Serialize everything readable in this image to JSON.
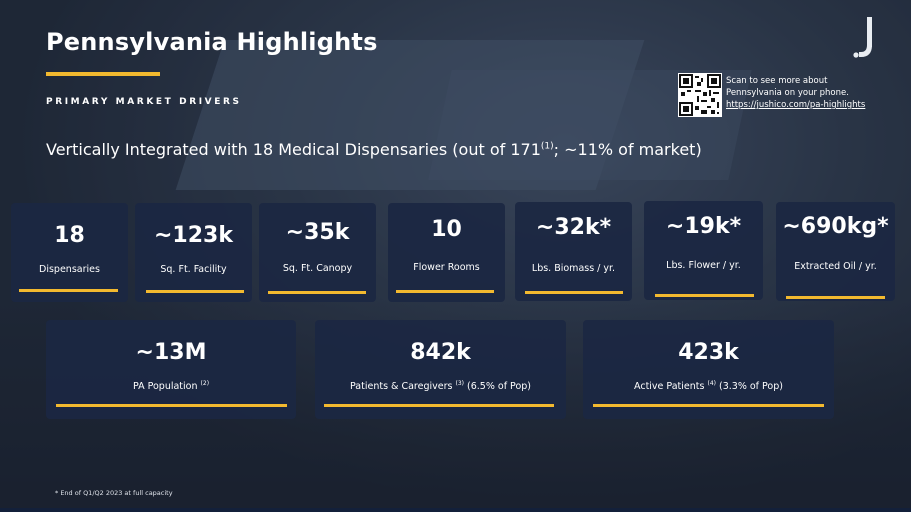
{
  "slide": {
    "title": "Pennsylvania Highlights",
    "subtitle": "PRIMARY MARKET DRIVERS",
    "headline": {
      "text": "Vertically Integrated with 18 Medical Dispensaries (out of 171",
      "sup": "(1)",
      "suffix": "; ~11% of market)"
    },
    "qr": {
      "line1": "Scan to see more about",
      "line2": "Pennsylvania on your phone.",
      "url": "https://jushico.com/pa-highlights"
    },
    "footnote": "* End of Q1/Q2 2023 at full capacity"
  },
  "top_stats": [
    {
      "value": "18",
      "label": "Dispensaries"
    },
    {
      "value": "~123k",
      "label": "Sq. Ft. Facility"
    },
    {
      "value": "~35k",
      "label": "Sq. Ft. Canopy"
    },
    {
      "value": "10",
      "label": "Flower Rooms"
    },
    {
      "value": "~32k*",
      "label": "Lbs. Biomass / yr."
    },
    {
      "value": "~19k*",
      "label": "Lbs. Flower / yr."
    },
    {
      "value": "~690kg*",
      "label": "Extracted Oil / yr."
    }
  ],
  "bottom_stats": [
    {
      "value": "~13M",
      "label": "PA Population",
      "sup": "(2)",
      "suffix": ""
    },
    {
      "value": "842k",
      "label": "Patients & Caregivers",
      "sup": "(3)",
      "suffix": " (6.5% of Pop)"
    },
    {
      "value": "423k",
      "label": "Active Patients",
      "sup": "(4)",
      "suffix": " (3.3% of Pop)"
    }
  ],
  "colors": {
    "accent": "#f2b92f",
    "card": "#1b2742",
    "text": "#ffffff"
  },
  "icons": {
    "logo": "jushi-j-logo",
    "qr": "qr-code-icon"
  }
}
